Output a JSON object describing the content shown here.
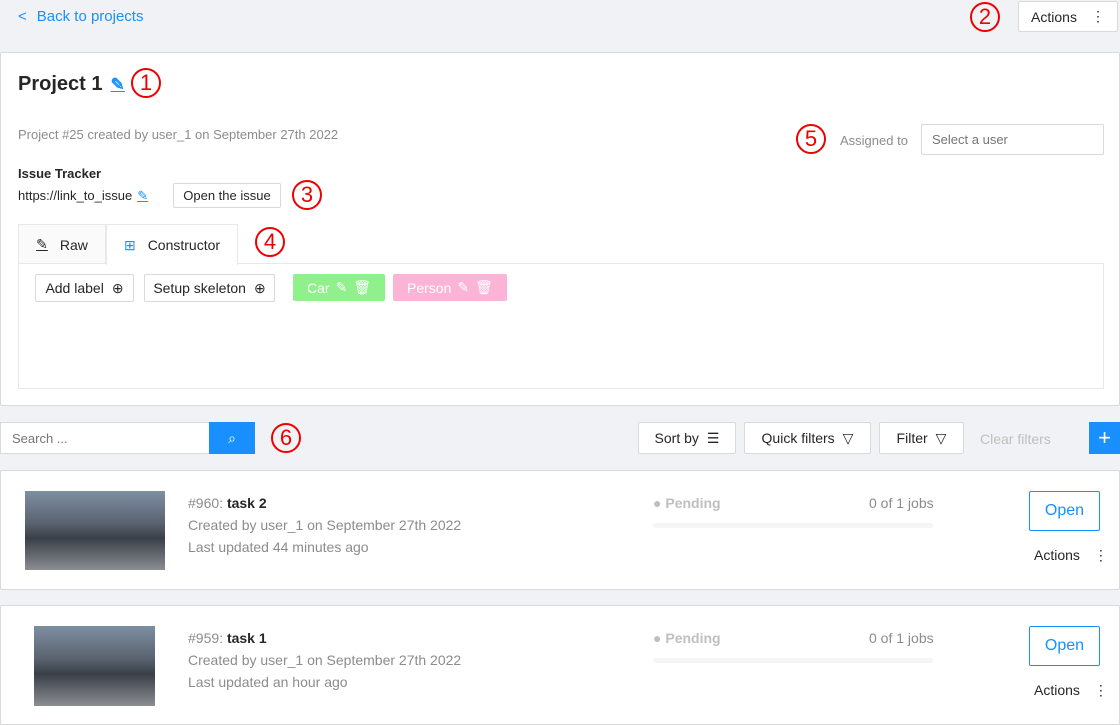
{
  "header": {
    "back_label": "Back to projects",
    "actions_label": "Actions"
  },
  "project": {
    "title": "Project 1",
    "meta": "Project #25 created by user_1 on September 27th 2022",
    "assigned_label": "Assigned to",
    "assignee_placeholder": "Select a user",
    "issue_tracker_label": "Issue Tracker",
    "issue_link": "https://link_to_issue",
    "open_issue_label": "Open the issue"
  },
  "tabs": [
    {
      "label": "Raw",
      "icon": "pencil-icon"
    },
    {
      "label": "Constructor",
      "icon": "blocks-icon",
      "active": true
    }
  ],
  "constructor": {
    "add_label": "Add label",
    "setup_skeleton": "Setup skeleton",
    "labels": [
      {
        "name": "Car",
        "color": "#8ff08c"
      },
      {
        "name": "Person",
        "color": "#fbb3d6"
      }
    ]
  },
  "toolbar": {
    "search_placeholder": "Search ...",
    "sort_by": "Sort by",
    "quick_filters": "Quick filters",
    "filter": "Filter",
    "clear_filters": "Clear filters"
  },
  "tasks": [
    {
      "id": "#960:",
      "name": "task 2",
      "created": "Created by user_1 on September 27th 2022",
      "updated": "Last updated 44 minutes ago",
      "status": "Pending",
      "jobs": "0 of 1 jobs",
      "progress": 0,
      "open": "Open",
      "actions": "Actions"
    },
    {
      "id": "#959:",
      "name": "task 1",
      "created": "Created by user_1 on September 27th 2022",
      "updated": "Last updated an hour ago",
      "status": "Pending",
      "jobs": "0 of 1 jobs",
      "progress": 0,
      "open": "Open",
      "actions": "Actions"
    }
  ],
  "annotations": [
    "1",
    "2",
    "3",
    "4",
    "5",
    "6"
  ],
  "colors": {
    "accent": "#1890ff",
    "annotation": "#ee0000"
  }
}
